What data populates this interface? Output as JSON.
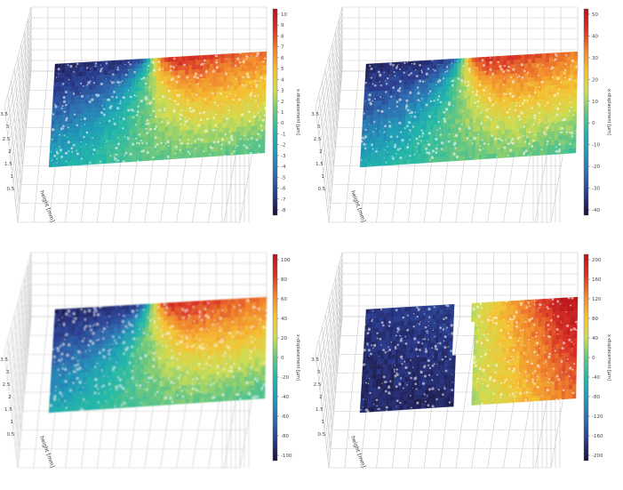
{
  "chart_data": [
    {
      "type": "heatmap",
      "colorbar_label": "x-displacement [µm]",
      "colorbar_ticks": [
        "10",
        "9",
        "8",
        "7",
        "6",
        "5",
        "4",
        "3",
        "2",
        "1",
        "0",
        "-1",
        "-2",
        "-3",
        "-4",
        "-5",
        "-6",
        "-7",
        "-8"
      ],
      "clim": [
        -8,
        10
      ],
      "axis_label": "height [mm]",
      "axis_ticks": [
        "3.5",
        "3",
        "2.5",
        "2",
        "1.5",
        "1",
        "0.5"
      ],
      "crack_opening": false,
      "blur": 0
    },
    {
      "type": "heatmap",
      "colorbar_label": "x-displacement [µm]",
      "colorbar_ticks": [
        "50",
        "40",
        "30",
        "20",
        "10",
        "0",
        "-10",
        "-20",
        "-30",
        "-40"
      ],
      "clim": [
        -45,
        55
      ],
      "axis_label": "height [mm]",
      "axis_ticks": [
        "3.5",
        "3",
        "2.5",
        "2",
        "1.5",
        "1",
        "0.5"
      ],
      "crack_opening": false,
      "blur": 0
    },
    {
      "type": "heatmap",
      "colorbar_label": "x-displacement [µm]",
      "colorbar_ticks": [
        "100",
        "80",
        "60",
        "40",
        "20",
        "0",
        "-20",
        "-40",
        "-60",
        "-80",
        "-100"
      ],
      "clim": [
        -110,
        110
      ],
      "axis_label": "height [mm]",
      "axis_ticks": [
        "3.5",
        "3",
        "2.5",
        "2",
        "1.5",
        "1",
        "0.5"
      ],
      "crack_opening": false,
      "blur": 0.8
    },
    {
      "type": "heatmap",
      "colorbar_label": "x-displacement [µm]",
      "colorbar_ticks": [
        "200",
        "160",
        "120",
        "80",
        "40",
        "0",
        "-40",
        "-80",
        "-120",
        "-160",
        "-200"
      ],
      "clim": [
        -200,
        220
      ],
      "axis_label": "height [mm]",
      "axis_ticks": [
        "3.5",
        "3",
        "2.5",
        "2",
        "1.5",
        "1",
        "0.5"
      ],
      "crack_opening": true,
      "blur": 0
    }
  ],
  "colormap": [
    "#1a1236",
    "#2a3a8c",
    "#2e6db0",
    "#1f98b8",
    "#22b8a8",
    "#66c680",
    "#cfdc52",
    "#f4c232",
    "#f0862c",
    "#d83226",
    "#b8151c"
  ]
}
